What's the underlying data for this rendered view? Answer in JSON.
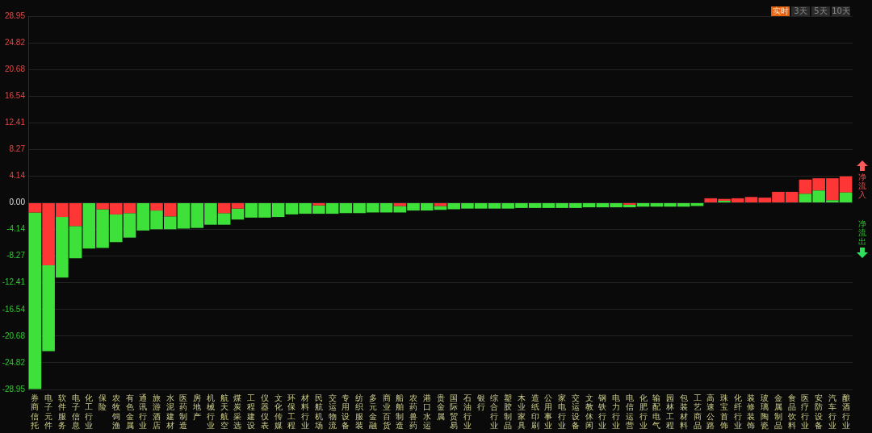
{
  "chart_data": {
    "type": "bar",
    "stacked": true,
    "categories": [
      "券商信托",
      "电子元件",
      "软件服务",
      "电子信息",
      "化工行业",
      "保险",
      "农牧饲渔",
      "有色金属",
      "通讯行业",
      "旅游酒店",
      "水泥建材",
      "医药制造",
      "房地产",
      "机械行业",
      "航天航空",
      "煤炭采选",
      "工程建设",
      "仪器仪表",
      "文化传媒",
      "环保工程",
      "材料行业",
      "民航机场",
      "交运物流",
      "专用设备",
      "纺织服装",
      "多元金融",
      "商业百货",
      "船舶制造",
      "农药兽药",
      "港口水运",
      "贵金属",
      "国际贸易",
      "石油行业",
      "银行",
      "综合行业",
      "塑胶制品",
      "木业家具",
      "造纸印刷",
      "公用事业",
      "家电行业",
      "交运设备",
      "文教休闲",
      "钢铁行业",
      "电力行业",
      "电信运营",
      "化肥行业",
      "输配电气",
      "园林工程",
      "包装材料",
      "工艺商品",
      "高速公路",
      "珠宝首饰",
      "化纤行业",
      "装修装饰",
      "玻璃陶瓷",
      "金属制品",
      "食品饮料",
      "医疗行业",
      "安防设备",
      "汽车行业",
      "酿酒行业"
    ],
    "series": [
      {
        "color": "#3ee03a",
        "values": [
          null,
          null,
          null,
          null,
          null,
          null,
          null,
          null,
          null,
          null,
          null,
          null,
          null,
          null,
          null,
          null,
          null,
          null,
          null,
          null,
          null,
          null,
          null,
          null,
          null,
          null,
          null,
          null,
          null,
          null,
          null,
          null,
          null,
          null,
          null,
          null,
          null,
          null,
          null,
          null,
          null,
          null,
          null,
          null,
          null,
          null,
          null,
          null,
          null,
          null,
          null,
          0.3,
          null,
          null,
          null,
          null,
          null,
          1.4,
          1.9,
          0.4,
          1.6
        ]
      },
      {
        "color": "#ff3636",
        "values": [
          -1.5,
          -9.7,
          -2.2,
          -3.6,
          null,
          -1.0,
          -1.8,
          -1.6,
          null,
          -1.2,
          -2.1,
          null,
          null,
          null,
          -1.6,
          -0.9,
          null,
          null,
          null,
          null,
          null,
          -0.4,
          null,
          null,
          null,
          null,
          null,
          -0.5,
          null,
          null,
          -0.5,
          null,
          null,
          null,
          null,
          null,
          null,
          null,
          null,
          null,
          null,
          null,
          null,
          null,
          -0.3,
          null,
          null,
          null,
          null,
          null,
          0.7,
          0.3,
          0.7,
          0.9,
          0.8,
          1.7,
          1.7,
          2.2,
          1.9,
          3.4,
          2.5
        ]
      },
      {
        "color": "#3ee03a",
        "values": [
          -27.4,
          -13.3,
          -9.4,
          -5.0,
          -7.1,
          -6.0,
          -4.3,
          -3.8,
          -4.3,
          -2.9,
          -2.0,
          -4.0,
          -3.9,
          -3.4,
          -1.8,
          -1.7,
          -2.3,
          -2.3,
          -2.2,
          -1.8,
          -1.7,
          -1.3,
          -1.7,
          -1.6,
          -1.6,
          -1.5,
          -1.5,
          -1.0,
          -1.2,
          -1.2,
          -0.6,
          -1.0,
          -0.9,
          -0.9,
          -0.9,
          -0.9,
          -0.8,
          -0.8,
          -0.8,
          -0.8,
          -0.8,
          -0.7,
          -0.7,
          -0.7,
          -0.4,
          -0.6,
          -0.6,
          -0.6,
          -0.6,
          -0.5,
          null,
          null,
          null,
          null,
          null,
          null,
          null,
          null,
          null,
          null,
          null
        ]
      }
    ],
    "ylim": [
      -28.95,
      28.95
    ],
    "yticks": [
      -28.95,
      -24.82,
      -20.68,
      -16.54,
      -12.41,
      -8.27,
      -4.14,
      {
        "value": 0,
        "label": "0.00"
      },
      4.14,
      8.27,
      12.41,
      16.54,
      20.68,
      24.82,
      28.95
    ],
    "grid": "y",
    "legend": false,
    "annotations": [
      "实时",
      "3天",
      "5天",
      "10天",
      "净流入",
      "净流出"
    ]
  }
}
